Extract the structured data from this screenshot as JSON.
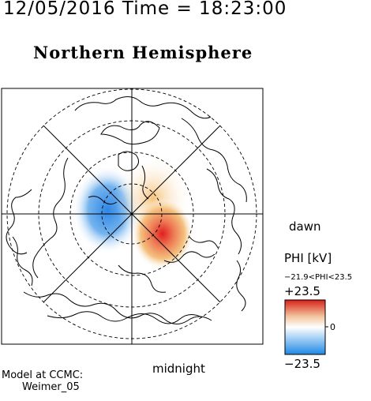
{
  "header": {
    "datetime": "12/05/2016 Time = 18:23:00",
    "hemisphere_title": "Northern Hemisphere"
  },
  "map": {
    "projection": "polar",
    "hemisphere": "north",
    "grid": {
      "latitude_circles": [
        80,
        70,
        60,
        50
      ],
      "meridian_lines": 8,
      "style": "dashed circles, solid radial lines"
    },
    "potential_pattern": {
      "negative_cell": {
        "sign": "-",
        "location": "morning sector (dusk-to-noon side)",
        "color": "#2f86e6"
      },
      "positive_cell": {
        "sign": "+",
        "location": "evening sector toward midnight",
        "color": "#e01f1f"
      }
    },
    "side_labels": {
      "right": "dawn",
      "bottom": "midnight"
    }
  },
  "colorbar": {
    "title": "PHI [kV]",
    "range_text": "−21.9<PHI<23.5",
    "max_label": "+23.5",
    "min_label": "−23.5",
    "zero_tick": "0",
    "colors": {
      "top": "#d9201a",
      "mid_high": "#f2c49c",
      "middle": "#ffffff",
      "mid_low": "#a6d0f5",
      "bottom": "#1e88e5"
    }
  },
  "footer": {
    "model_line1": "Model at CCMC:",
    "model_line2": "Weimer_05"
  }
}
